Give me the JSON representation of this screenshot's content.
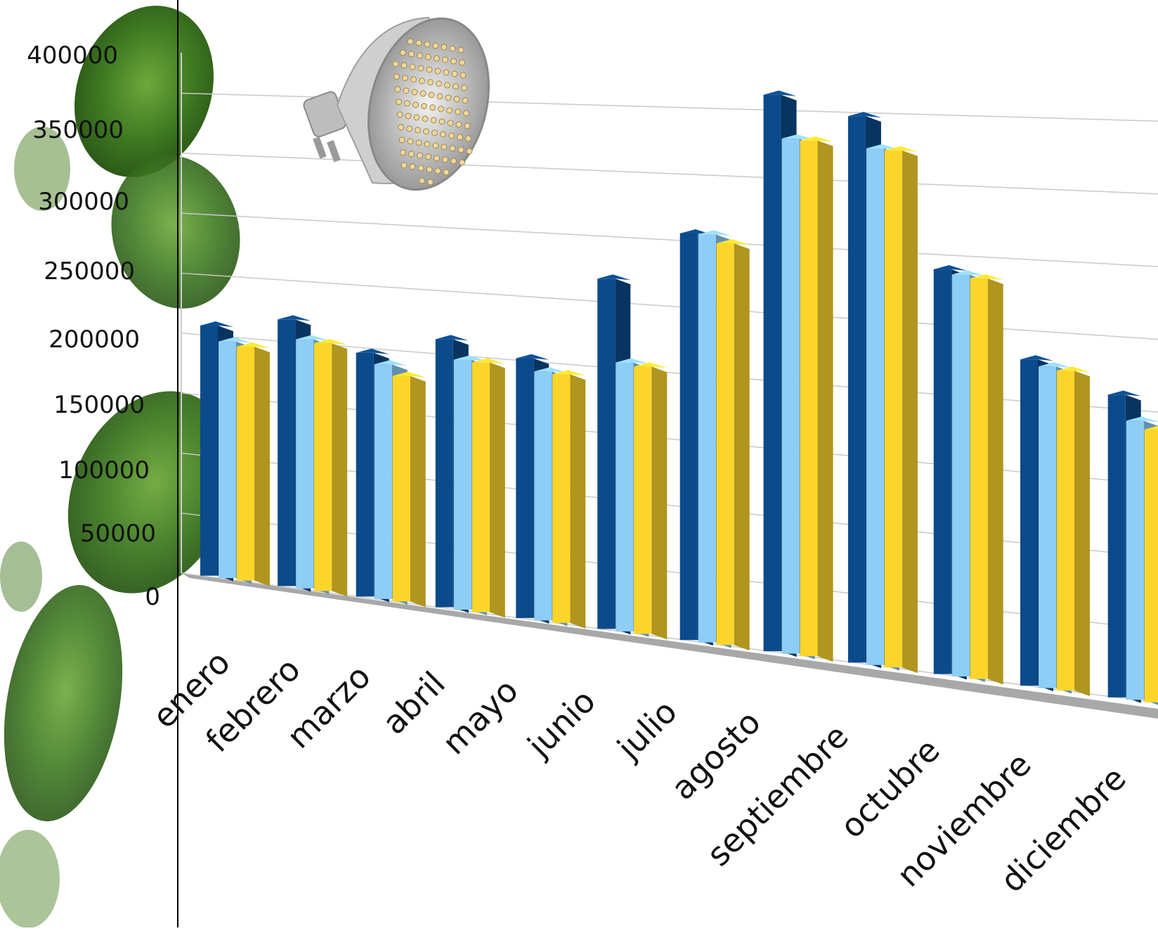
{
  "chart_data": {
    "type": "bar",
    "title": "",
    "xlabel": "",
    "ylabel": "",
    "ylim": [
      0,
      400000
    ],
    "y_ticks": [
      "400000",
      "350000",
      "300000",
      "250000",
      "200000",
      "150000",
      "100000",
      "50000",
      "0"
    ],
    "categories": [
      "enero",
      "febrero",
      "marzo",
      "abril",
      "mayo",
      "junio",
      "julio",
      "agosto",
      "septiembre",
      "octubre",
      "noviembre",
      "diciembre"
    ],
    "series": [
      {
        "color": "#0b4a8b",
        "values": [
          208000,
          218000,
          196000,
          212000,
          202000,
          268000,
          306000,
          412000,
          398000,
          290000,
          230000,
          210000
        ]
      },
      {
        "color": "#8ecdf5",
        "values": [
          196000,
          203000,
          188000,
          197000,
          193000,
          205000,
          306000,
          380000,
          375000,
          287000,
          226000,
          193000
        ]
      },
      {
        "color": "#fcd52b",
        "values": [
          193000,
          201000,
          180000,
          196000,
          192000,
          203000,
          300000,
          379000,
          374000,
          285000,
          224000,
          188000
        ]
      }
    ],
    "grid": true,
    "legend": "none",
    "style": "3d-perspective"
  },
  "decorations": {
    "background": "green-leaves-image",
    "inset_image": "led-spotlight-bulb"
  }
}
